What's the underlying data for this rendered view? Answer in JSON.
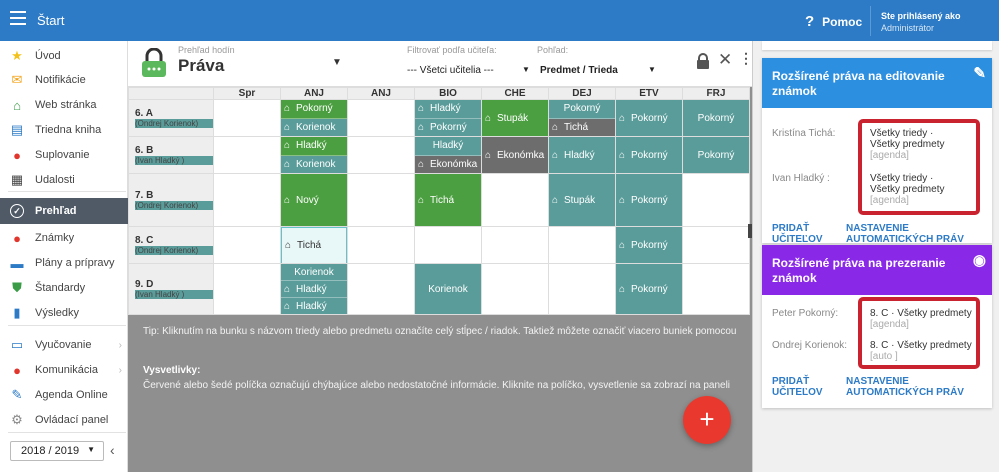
{
  "topbar": {
    "title": "Štart",
    "help": "Pomoc",
    "user_line1": "Ste prihlásený ako",
    "user_line2": "Administrátor"
  },
  "sidebar": {
    "items": [
      {
        "label": "Úvod",
        "icon": "star-icon",
        "color": "#f3c21a"
      },
      {
        "label": "Notifikácie",
        "icon": "mail-icon",
        "color": "#f3a21a"
      },
      {
        "label": "Web stránka",
        "icon": "home-icon",
        "color": "#3a9c47"
      },
      {
        "label": "Triedna kniha",
        "icon": "book-icon",
        "color": "#2d7bc6"
      },
      {
        "label": "Suplovanie",
        "icon": "person-icon",
        "color": "#e2362c"
      },
      {
        "label": "Udalosti",
        "icon": "calendar-icon",
        "color": "#444444"
      },
      {
        "label": "Prehľad",
        "icon": "check-circle-icon",
        "color": "#ffffff"
      },
      {
        "label": "Známky",
        "icon": "grade-icon",
        "color": "#e2362c"
      },
      {
        "label": "Plány a prípravy",
        "icon": "briefcase-icon",
        "color": "#2d7bc6"
      },
      {
        "label": "Štandardy",
        "icon": "shield-icon",
        "color": "#3a9c47"
      },
      {
        "label": "Výsledky",
        "icon": "bar-chart-icon",
        "color": "#2d7bc6"
      },
      {
        "label": "Vyučovanie",
        "icon": "book-open-icon",
        "color": "#2d7bc6"
      },
      {
        "label": "Komunikácia",
        "icon": "chat-icon",
        "color": "#e2362c"
      },
      {
        "label": "Agenda Online",
        "icon": "pencil-icon",
        "color": "#2d7bc6"
      },
      {
        "label": "Ovládací panel",
        "icon": "gear-icon",
        "color": "#888888"
      }
    ],
    "year": "2018 / 2019"
  },
  "header": {
    "subtitle": "Prehľad hodín",
    "title": "Práva",
    "filter1_label": "Filtrovať podľa učiteľa:",
    "filter1_value": "--- Všetci učitelia ---",
    "filter2_label": "Pohľad:",
    "filter2_value": "Predmet / Trieda"
  },
  "grid": {
    "columns": [
      "",
      "Spr",
      "ANJ",
      "ANJ",
      "BIO",
      "CHE",
      "DEJ",
      "ETV",
      "FRJ"
    ],
    "rows": [
      {
        "name": "6. A",
        "teacher": "(Ondrej Korienok)",
        "cells": [
          [],
          [
            {
              "c": "g",
              "t": "Pokorný",
              "b": true
            },
            {
              "c": "t",
              "t": "Korienok",
              "b": true
            }
          ],
          [],
          [
            {
              "c": "t",
              "t": "Hladký",
              "b": true
            },
            {
              "c": "t",
              "t": "Pokorný",
              "b": true
            }
          ],
          [
            {
              "c": "g",
              "t": "Stupák",
              "b": true
            }
          ],
          [
            {
              "c": "t",
              "t": "Pokorný",
              "b": false
            },
            {
              "c": "d",
              "t": "Tichá",
              "b": true
            }
          ],
          [
            {
              "c": "t",
              "t": "Pokorný",
              "b": true
            }
          ],
          [
            {
              "c": "t",
              "t": "Pokorný",
              "b": false
            }
          ]
        ]
      },
      {
        "name": "6. B",
        "teacher": "(Ivan Hladký )",
        "cells": [
          [],
          [
            {
              "c": "g",
              "t": "Hladký",
              "b": true
            },
            {
              "c": "t",
              "t": "Korienok",
              "b": true
            }
          ],
          [],
          [
            {
              "c": "t",
              "t": "Hladký",
              "b": false
            },
            {
              "c": "d",
              "t": "Ekonómka",
              "b": true
            }
          ],
          [
            {
              "c": "d",
              "t": "Ekonómka",
              "b": true
            }
          ],
          [
            {
              "c": "t",
              "t": "Hladký",
              "b": true
            }
          ],
          [
            {
              "c": "t",
              "t": "Pokorný",
              "b": true
            }
          ],
          [
            {
              "c": "t",
              "t": "Pokorný",
              "b": false
            }
          ]
        ]
      },
      {
        "name": "7. B",
        "teacher": "(Ondrej Korienok)",
        "cells": [
          [],
          [
            {
              "c": "g",
              "t": "Nový",
              "b": true
            }
          ],
          [],
          [
            {
              "c": "g",
              "t": "Tichá",
              "b": true
            }
          ],
          [],
          [
            {
              "c": "t",
              "t": "Stupák",
              "b": true
            }
          ],
          [
            {
              "c": "t",
              "t": "Pokorný",
              "b": true
            }
          ],
          []
        ]
      },
      {
        "name": "8. C",
        "teacher": "(Ondrej Korienok)",
        "cells": [
          [],
          [
            {
              "c": "hl",
              "t": "Tichá",
              "b": true
            }
          ],
          [],
          [],
          [],
          [],
          [
            {
              "c": "t",
              "t": "Pokorný",
              "b": true
            }
          ],
          []
        ]
      },
      {
        "name": "9. D",
        "teacher": "(Ivan Hladký )",
        "cells": [
          [],
          [
            {
              "c": "t",
              "t": "Korienok",
              "b": false
            },
            {
              "c": "t",
              "t": "Hladký",
              "b": true
            },
            {
              "c": "t",
              "t": "Hladký",
              "b": true
            }
          ],
          [],
          [
            {
              "c": "t",
              "t": "Korienok",
              "b": false
            }
          ],
          [],
          [],
          [
            {
              "c": "t",
              "t": "Pokorný",
              "b": true
            }
          ],
          []
        ]
      }
    ]
  },
  "tip": "Tip: Kliknutím na bunku s názvom triedy alebo predmetu označíte celý stĺpec / riadok. Taktiež môžete označiť viacero buniek pomocou",
  "legend": {
    "title": "Vysvetlivky:",
    "text": "Červené alebo šedé políčka označujú chýbajúce alebo nedostatočné informácie. Kliknite na políčko, vysvetlenie sa zobrazí na paneli"
  },
  "card_edit": {
    "title": "Rozšírené práva na editovanie známok",
    "color": "#2d8fe0",
    "icon": "pencil-icon",
    "rows": [
      {
        "name": "Kristína Tichá:",
        "v1": "Všetky triedy",
        "v2": "Všetky predmety",
        "v3": "[agenda]"
      },
      {
        "name": "Ivan Hladký :",
        "v1": "Všetky triedy",
        "v2": "Všetky predmety",
        "v3": "[agenda]"
      }
    ],
    "link1": "PRIDAŤ UČITEĽOV",
    "link2": "NASTAVENIE AUTOMATICKÝCH PRÁV"
  },
  "card_view": {
    "title": "Rozšírené práva na prezeranie známok",
    "color": "#8a28e8",
    "icon": "eye-icon",
    "rows": [
      {
        "name": "Peter Pokorný:",
        "v1": "8. C",
        "v2": "Všetky predmety",
        "v3": "[agenda]"
      },
      {
        "name": "Ondrej Korienok:",
        "v1": "8. C",
        "v2": "Všetky predmety",
        "v3": "[auto ]"
      }
    ],
    "link1": "PRIDAŤ UČITEĽOV",
    "link2": "NASTAVENIE AUTOMATICKÝCH PRÁV"
  },
  "fab": "+"
}
